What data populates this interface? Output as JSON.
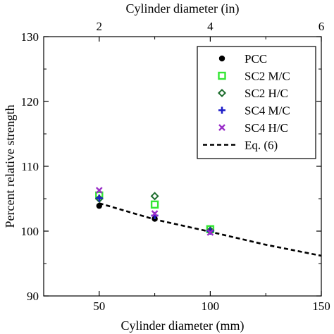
{
  "chart_data": {
    "type": "scatter",
    "xlabel": "Cylinder diameter (mm)",
    "x2label": "Cylinder diameter (in)",
    "ylabel": "Percent relative strength",
    "xlim": [
      25,
      150
    ],
    "x2lim": [
      1,
      6
    ],
    "ylim": [
      90,
      130
    ],
    "xticks": [
      50,
      100,
      150
    ],
    "xtick_labels": [
      "50",
      "100",
      "150"
    ],
    "x2ticks": [
      2,
      4,
      6
    ],
    "x2tick_labels": [
      "2",
      "4",
      "6"
    ],
    "yticks": [
      90,
      100,
      110,
      120,
      130
    ],
    "ytick_labels": [
      "90",
      "100",
      "110",
      "120",
      "130"
    ],
    "grid": false,
    "legend_position": "top-right",
    "series": [
      {
        "name": "PCC",
        "marker": "filled-circle",
        "color": "#000000",
        "x": [
          50,
          75,
          100
        ],
        "y": [
          103.9,
          101.9,
          100.0
        ]
      },
      {
        "name": "SC2 M/C",
        "marker": "open-square",
        "color": "#33e633",
        "x": [
          50,
          75,
          100
        ],
        "y": [
          105.5,
          104.1,
          100.3
        ]
      },
      {
        "name": "SC2 H/C",
        "marker": "open-diamond",
        "color": "#1f6e2f",
        "x": [
          50,
          75,
          100
        ],
        "y": [
          105.0,
          105.4,
          100.1
        ]
      },
      {
        "name": "SC4 M/C",
        "marker": "plus",
        "color": "#1f1fc8",
        "x": [
          50,
          75,
          100
        ],
        "y": [
          105.1,
          102.4,
          100.0
        ]
      },
      {
        "name": "SC4 H/C",
        "marker": "cross",
        "color": "#9a2fc8",
        "x": [
          50,
          75,
          100
        ],
        "y": [
          106.3,
          102.7,
          99.8
        ]
      },
      {
        "name": "Eq. (6)",
        "marker": "dashed-line",
        "color": "#000000",
        "x": [
          50,
          75,
          100,
          125,
          150
        ],
        "y": [
          104.3,
          101.8,
          99.9,
          97.9,
          96.2
        ]
      }
    ]
  }
}
